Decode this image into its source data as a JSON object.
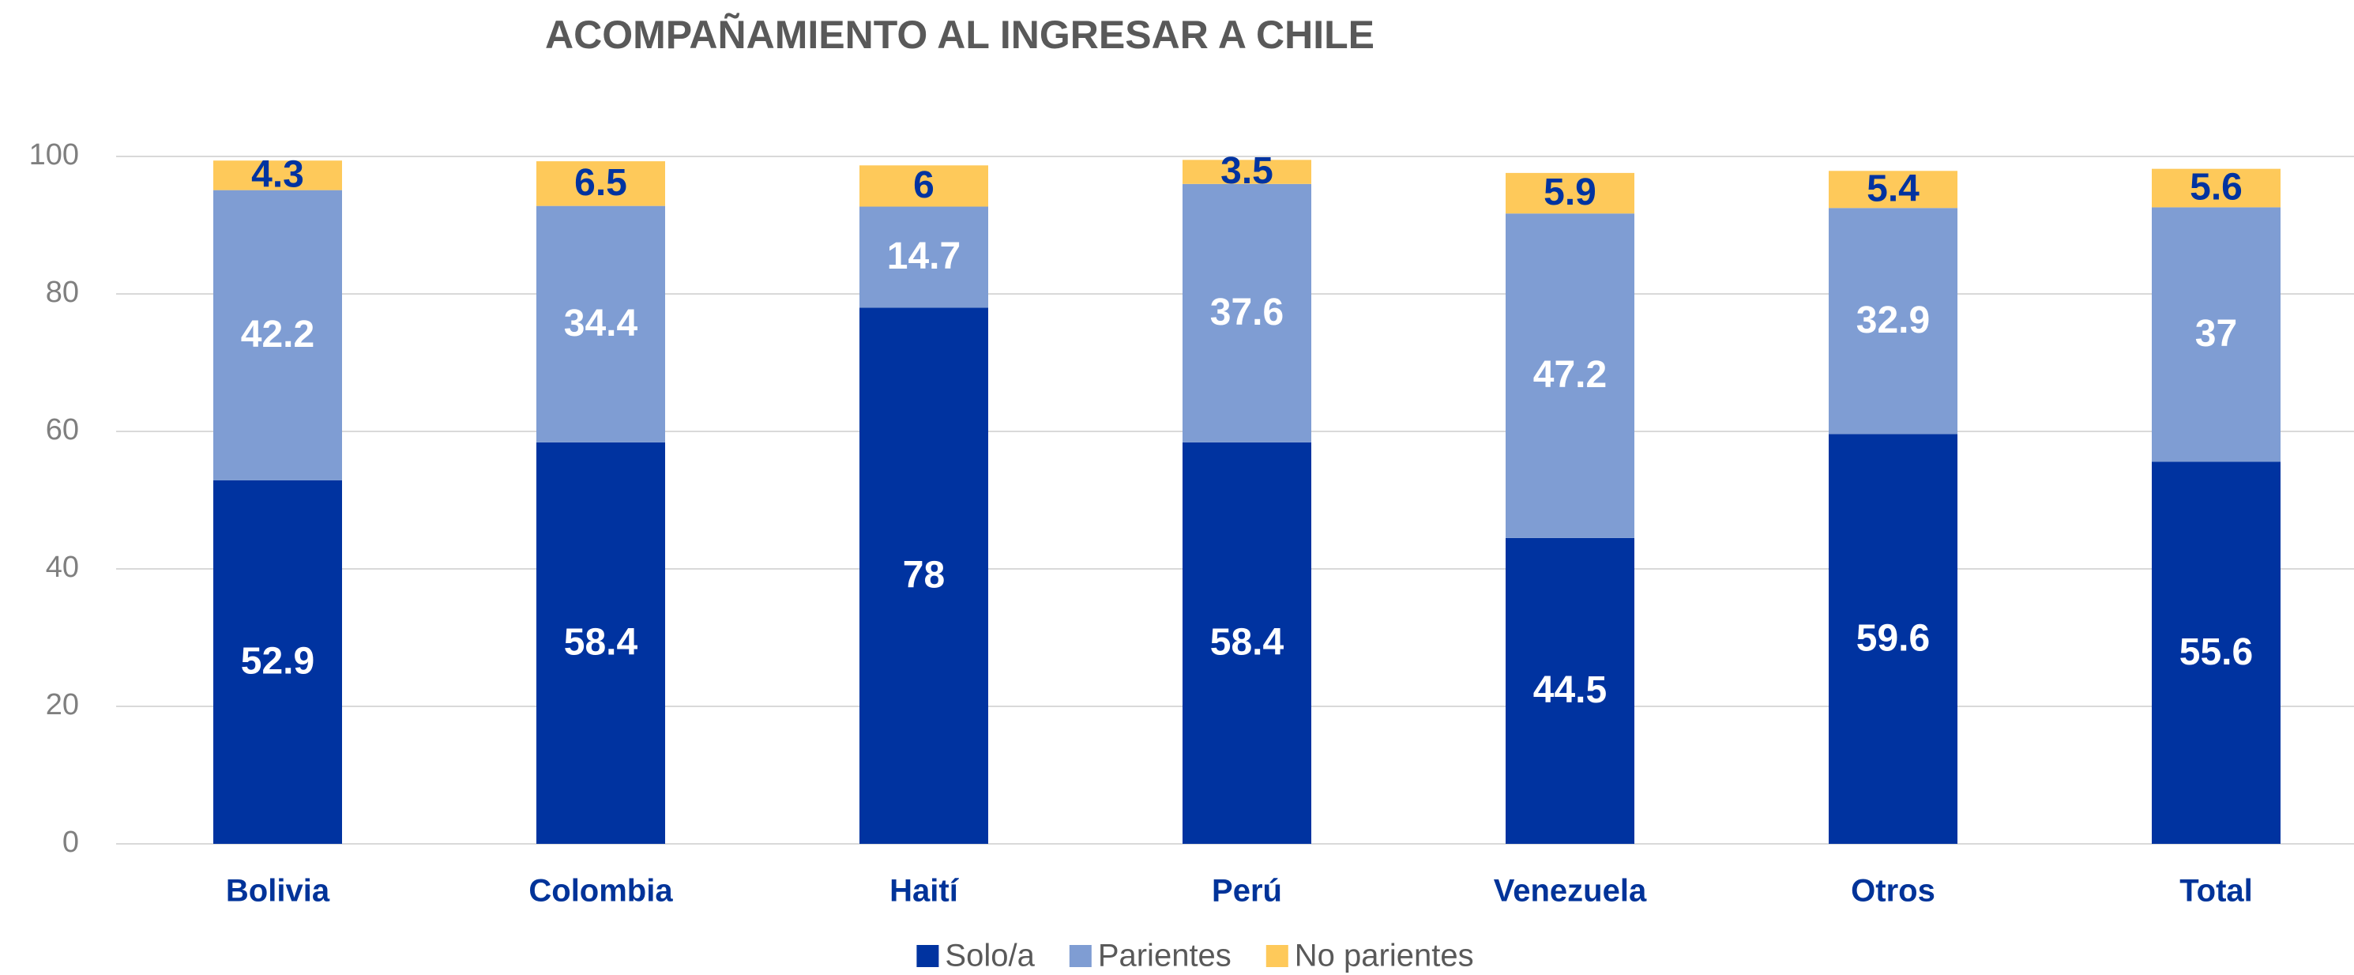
{
  "chart_data": {
    "type": "stacked_bar",
    "title": "ACOMPAÑAMIENTO AL INGRESAR A CHILE",
    "categories": [
      "Bolivia",
      "Colombia",
      "Haití",
      "Perú",
      "Venezuela",
      "Otros",
      "Total"
    ],
    "series": [
      {
        "name": "Solo/a",
        "color": "#0033a0",
        "label_color": "#ffffff",
        "values": [
          52.9,
          58.4,
          78,
          58.4,
          44.5,
          59.6,
          55.6
        ]
      },
      {
        "name": "Parientes",
        "color": "#7f9dd3",
        "label_color": "#ffffff",
        "values": [
          42.2,
          34.4,
          14.7,
          37.6,
          47.2,
          32.9,
          37
        ]
      },
      {
        "name": "No parientes",
        "color": "#fec95a",
        "label_color": "#0033a0",
        "values": [
          4.3,
          6.5,
          6,
          3.5,
          5.9,
          5.4,
          5.6
        ]
      }
    ],
    "ylim": [
      0,
      100
    ],
    "yticks": [
      0,
      20,
      40,
      60,
      80,
      100
    ],
    "grid": true,
    "legend": "bottom"
  }
}
